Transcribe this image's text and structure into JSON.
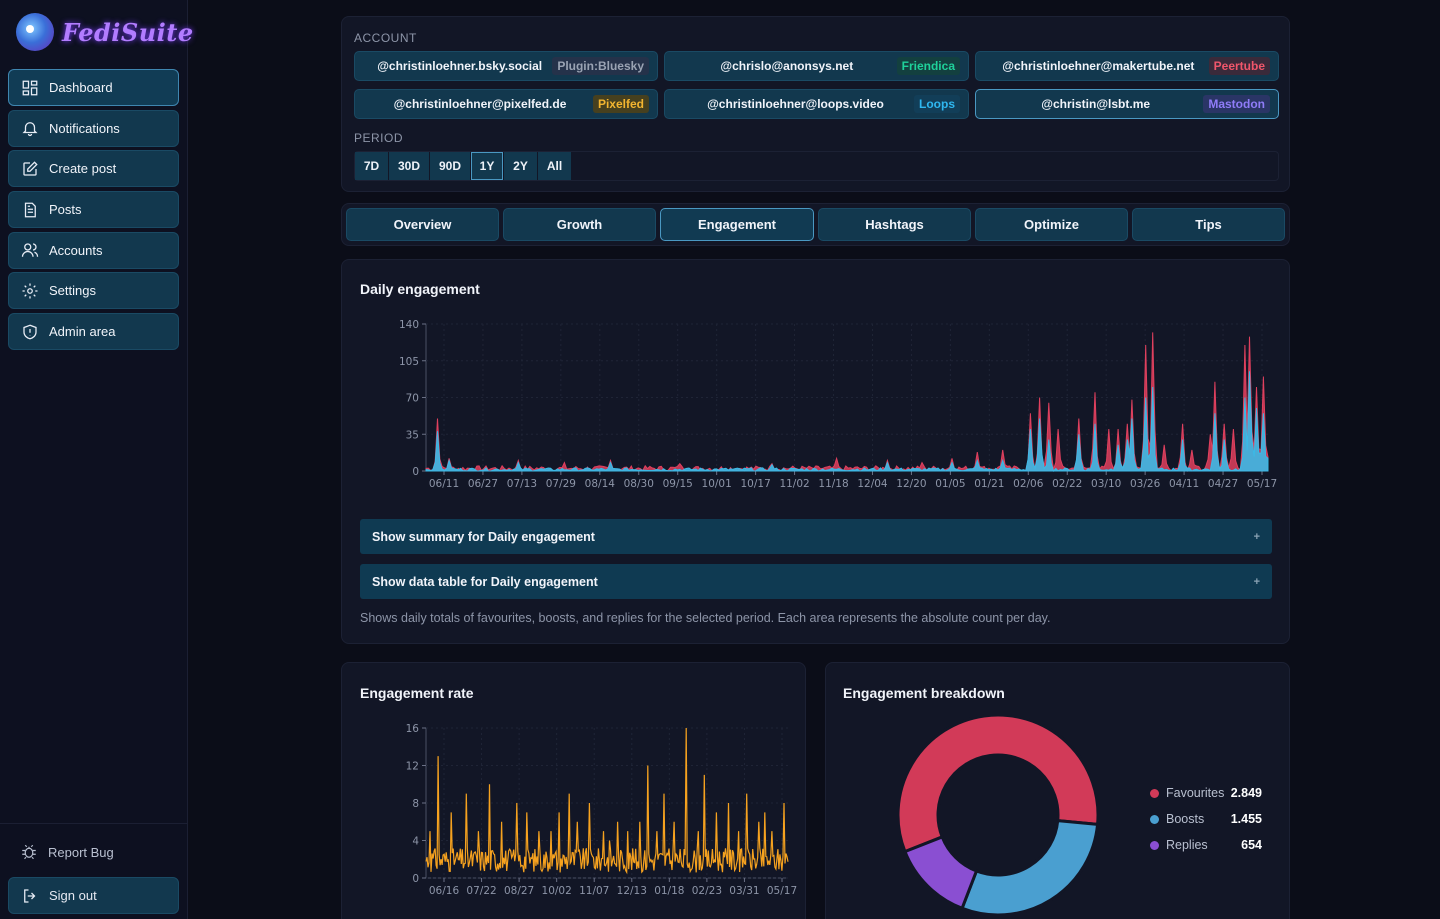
{
  "app": {
    "logo_text": "FediSuite"
  },
  "sidebar": {
    "items": [
      {
        "label": "Dashboard",
        "icon": "dashboard-icon"
      },
      {
        "label": "Notifications",
        "icon": "bell-icon"
      },
      {
        "label": "Create post",
        "icon": "edit-icon"
      },
      {
        "label": "Posts",
        "icon": "document-icon"
      },
      {
        "label": "Accounts",
        "icon": "users-icon"
      },
      {
        "label": "Settings",
        "icon": "gear-icon"
      },
      {
        "label": "Admin area",
        "icon": "shield-icon"
      }
    ],
    "report_bug": "Report Bug",
    "sign_out": "Sign out"
  },
  "account_section": {
    "label": "ACCOUNT",
    "accounts": [
      {
        "handle": "@christinloehner.bsky.social",
        "badge": "Plugin:Bluesky",
        "badge_color": "#9aa3b3",
        "badge_bg": "#25324a"
      },
      {
        "handle": "@chrislo@anonsys.net",
        "badge": "Friendica",
        "badge_color": "#1fd19a",
        "badge_bg": "#13403f"
      },
      {
        "handle": "@christinloehner@makertube.net",
        "badge": "Peertube",
        "badge_color": "#f0566b",
        "badge_bg": "#3a2a3a"
      },
      {
        "handle": "@christinloehner@pixelfed.de",
        "badge": "Pixelfed",
        "badge_color": "#f3b530",
        "badge_bg": "#46401f"
      },
      {
        "handle": "@christinloehner@loops.video",
        "badge": "Loops",
        "badge_color": "#2fb7f0",
        "badge_bg": "#123e58"
      },
      {
        "handle": "@christin@lsbt.me",
        "badge": "Mastodon",
        "badge_color": "#8f7cf8",
        "badge_bg": "#2a3566"
      }
    ]
  },
  "period": {
    "label": "PERIOD",
    "options": [
      "7D",
      "30D",
      "90D",
      "1Y",
      "2Y",
      "All"
    ],
    "selected": "1Y"
  },
  "tabs": [
    "Overview",
    "Growth",
    "Engagement",
    "Hashtags",
    "Optimize",
    "Tips"
  ],
  "active_tab": "Engagement",
  "daily": {
    "title": "Daily engagement",
    "summary_label": "Show summary for Daily engagement",
    "table_label": "Show data table for Daily engagement",
    "description": "Shows daily totals of favourites, boosts, and replies for the selected period. Each area represents the absolute count per day."
  },
  "rate": {
    "title": "Engagement rate"
  },
  "breakdown": {
    "title": "Engagement breakdown"
  },
  "chart_data": [
    {
      "type": "area",
      "title": "Daily engagement",
      "x_ticks": [
        "06/11",
        "06/27",
        "07/13",
        "07/29",
        "08/14",
        "08/30",
        "09/15",
        "10/01",
        "10/17",
        "11/02",
        "11/18",
        "12/04",
        "12/20",
        "01/05",
        "01/21",
        "02/06",
        "02/22",
        "03/10",
        "03/26",
        "04/11",
        "04/27",
        "05/17"
      ],
      "y_ticks": [
        0,
        35,
        70,
        105,
        140
      ],
      "ylim": [
        0,
        140
      ],
      "colors": {
        "favourites": "#e0405e",
        "boosts": "#3cb9e6"
      },
      "series": [
        {
          "key": "favourites",
          "peaks": [
            [
              5,
              50
            ],
            [
              10,
              12
            ],
            [
              40,
              10
            ],
            [
              60,
              8
            ],
            [
              80,
              10
            ],
            [
              110,
              7
            ],
            [
              150,
              7
            ],
            [
              178,
              12
            ],
            [
              200,
              10
            ],
            [
              215,
              8
            ],
            [
              228,
              12
            ],
            [
              239,
              18
            ],
            [
              250,
              20
            ],
            [
              262,
              55
            ],
            [
              266,
              70
            ],
            [
              270,
              65
            ],
            [
              274,
              40
            ],
            [
              283,
              50
            ],
            [
              290,
              75
            ],
            [
              296,
              40
            ],
            [
              300,
              40
            ],
            [
              304,
              45
            ],
            [
              306,
              68
            ],
            [
              312,
              120
            ],
            [
              315,
              132
            ],
            [
              320,
              25
            ],
            [
              328,
              45
            ],
            [
              332,
              20
            ],
            [
              340,
              35
            ],
            [
              342,
              85
            ],
            [
              346,
              45
            ],
            [
              350,
              40
            ],
            [
              355,
              120
            ],
            [
              357,
              128
            ],
            [
              360,
              80
            ],
            [
              363,
              90
            ],
            [
              366,
              70
            ]
          ]
        },
        {
          "key": "boosts",
          "peaks": [
            [
              5,
              38
            ],
            [
              10,
              10
            ],
            [
              40,
              8
            ],
            [
              80,
              8
            ],
            [
              150,
              6
            ],
            [
              200,
              8
            ],
            [
              228,
              8
            ],
            [
              239,
              10
            ],
            [
              250,
              10
            ],
            [
              262,
              40
            ],
            [
              266,
              50
            ],
            [
              270,
              30
            ],
            [
              283,
              35
            ],
            [
              290,
              45
            ],
            [
              300,
              25
            ],
            [
              304,
              30
            ],
            [
              306,
              50
            ],
            [
              312,
              70
            ],
            [
              315,
              80
            ],
            [
              328,
              30
            ],
            [
              342,
              55
            ],
            [
              346,
              30
            ],
            [
              355,
              70
            ],
            [
              357,
              95
            ],
            [
              360,
              60
            ],
            [
              363,
              55
            ],
            [
              366,
              40
            ]
          ]
        }
      ]
    },
    {
      "type": "line",
      "title": "Engagement rate",
      "x_ticks": [
        "06/16",
        "07/22",
        "08/27",
        "10/02",
        "11/07",
        "12/13",
        "01/18",
        "02/23",
        "03/31",
        "05/17"
      ],
      "y_ticks": [
        0,
        4,
        8,
        12,
        16
      ],
      "ylim": [
        0,
        16
      ],
      "color": "#f6a21f",
      "peaks": [
        [
          4,
          5
        ],
        [
          12,
          13
        ],
        [
          25,
          7
        ],
        [
          40,
          9
        ],
        [
          52,
          5
        ],
        [
          63,
          10
        ],
        [
          75,
          6
        ],
        [
          90,
          8
        ],
        [
          100,
          7
        ],
        [
          112,
          5
        ],
        [
          124,
          5
        ],
        [
          132,
          7
        ],
        [
          142,
          9
        ],
        [
          150,
          6
        ],
        [
          162,
          8
        ],
        [
          176,
          5
        ],
        [
          182,
          4
        ],
        [
          190,
          6
        ],
        [
          200,
          5
        ],
        [
          212,
          6
        ],
        [
          220,
          12
        ],
        [
          229,
          5
        ],
        [
          236,
          9
        ],
        [
          246,
          6
        ],
        [
          258,
          16
        ],
        [
          270,
          5
        ],
        [
          276,
          11
        ],
        [
          288,
          7
        ],
        [
          300,
          8
        ],
        [
          310,
          5
        ],
        [
          318,
          9
        ],
        [
          330,
          6
        ],
        [
          336,
          7
        ],
        [
          343,
          5
        ],
        [
          355,
          8
        ]
      ]
    },
    {
      "type": "pie",
      "title": "Engagement breakdown",
      "categories": [
        "Favourites",
        "Boosts",
        "Replies"
      ],
      "values": [
        2849,
        1455,
        654
      ],
      "labels": [
        "2.849",
        "1.455",
        "654"
      ],
      "colors": [
        "#d23a58",
        "#4a9fd0",
        "#8a4fd2"
      ]
    }
  ]
}
